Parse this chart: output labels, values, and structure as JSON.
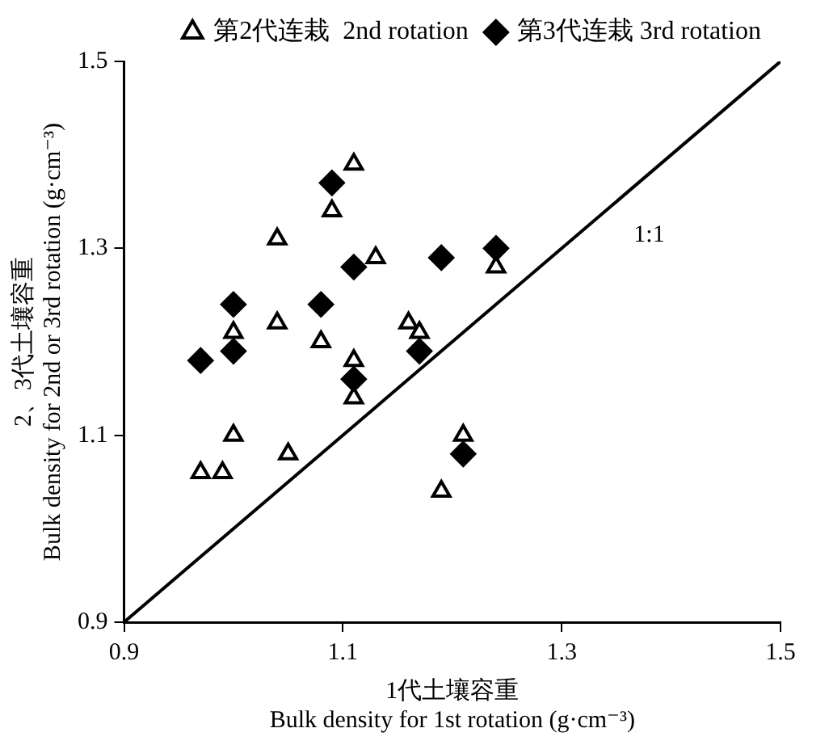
{
  "chart_data": {
    "type": "scatter",
    "xlabel": "1代土壤容重\nBulk density for 1st rotation (g·cm⁻³)",
    "ylabel": "2、3代土壤容重\nBulk density for 2nd or 3rd rotation (g·cm⁻³)",
    "xlim": [
      0.9,
      1.5
    ],
    "ylim": [
      0.9,
      1.5
    ],
    "xticks": [
      0.9,
      1.1,
      1.3,
      1.5
    ],
    "yticks": [
      0.9,
      1.1,
      1.3,
      1.5
    ],
    "grid": false,
    "legend": "top",
    "annotations": [
      "1:1"
    ],
    "series": [
      {
        "name": "第2代连栽  2nd rotation",
        "color": "#000000",
        "marker": "triangle",
        "x": [
          0.97,
          0.99,
          1.0,
          1.05,
          1.04,
          1.08,
          1.0,
          1.04,
          1.09,
          1.11,
          1.13,
          1.11,
          1.11,
          1.16,
          1.17,
          1.24,
          1.21,
          1.19
        ],
        "values": [
          1.06,
          1.06,
          1.1,
          1.08,
          1.22,
          1.2,
          1.21,
          1.31,
          1.34,
          1.39,
          1.29,
          1.18,
          1.14,
          1.22,
          1.21,
          1.28,
          1.1,
          1.04
        ]
      },
      {
        "name": "第3代连栽 3rd rotation",
        "color": "#000000",
        "marker": "diamond",
        "x": [
          0.97,
          1.0,
          1.0,
          1.08,
          1.09,
          1.11,
          1.19,
          1.24,
          1.17,
          1.11,
          1.21
        ],
        "values": [
          1.18,
          1.19,
          1.24,
          1.24,
          1.37,
          1.28,
          1.29,
          1.3,
          1.19,
          1.16,
          1.08
        ]
      },
      {
        "type": "line",
        "color": "#000000",
        "marker": "none",
        "x": [
          0.9,
          1.5
        ],
        "values": [
          0.9,
          1.5
        ]
      }
    ]
  }
}
